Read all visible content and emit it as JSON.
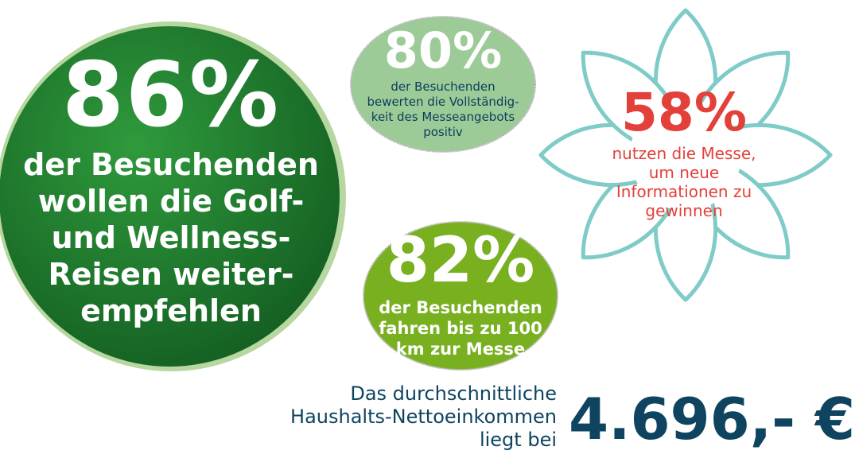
{
  "colors": {
    "dark_green": "#1f7a2e",
    "light_green": "#9dcb98",
    "lime": "#78b020",
    "navy": "#0e4460",
    "red": "#e3403a",
    "teal": "#7fcbc8"
  },
  "stat_86": {
    "value": "86%",
    "text": [
      "der Besuchenden",
      "wollen die Golf-",
      "und Wellness-",
      "Reisen weiter-",
      "empfehlen"
    ]
  },
  "stat_80": {
    "value": "80%",
    "text": [
      "der Besuchenden",
      "bewerten die Vollständig-",
      "keit des Messeangebots",
      "positiv"
    ]
  },
  "stat_82": {
    "value": "82%",
    "text": [
      "der Besuchenden",
      "fahren bis zu 100",
      "km zur Messe"
    ]
  },
  "stat_58": {
    "value": "58%",
    "text": [
      "nutzen die Messe,",
      "um neue",
      "Informationen zu",
      "gewinnen"
    ]
  },
  "income": {
    "text": [
      "Das durchschnittliche",
      "Haushalts-Nettoeinkommen",
      "liegt bei"
    ],
    "amount": "4.696,- €"
  }
}
